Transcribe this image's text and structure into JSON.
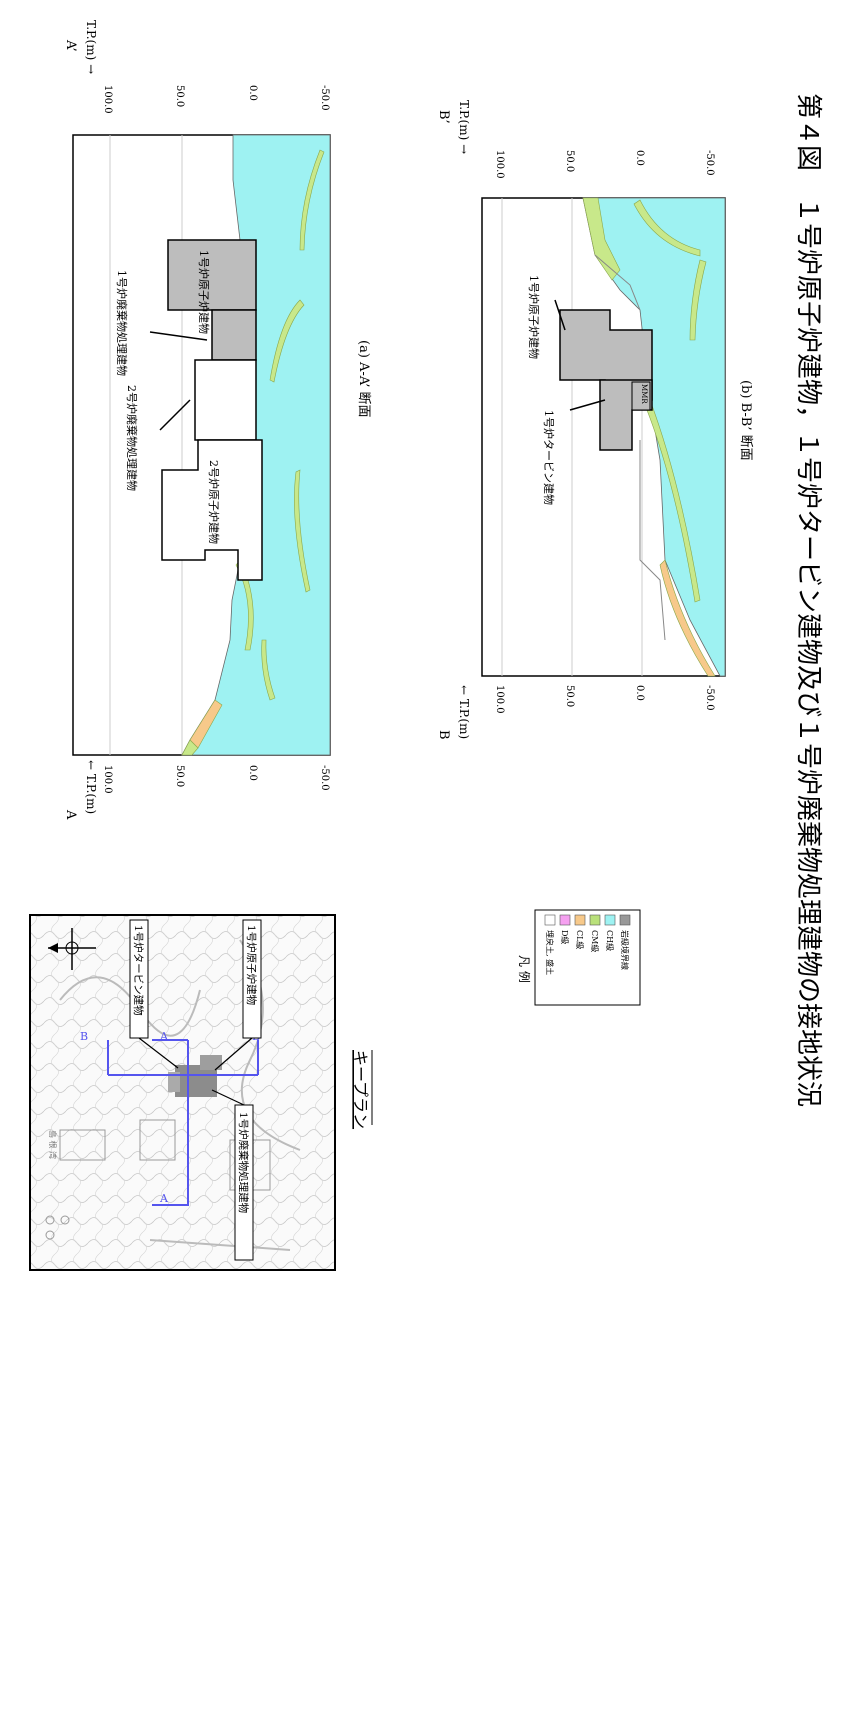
{
  "figure_caption": "第４図　１号炉原子炉建物，１号炉タービン建物及び１号炉廃棄物処理建物の接地状況",
  "key_plan": {
    "caption": "キープラン",
    "labels": {
      "turbine": "1号炉タービン建物",
      "reactor": "1号炉原子炉建物",
      "radwaste": "1号炉廃棄物処理建物",
      "sea": "島 根 湾"
    },
    "section_markers": [
      "A",
      "A",
      "B",
      "B"
    ]
  },
  "legend": {
    "title": "凡 例",
    "items": [
      {
        "label": "埋戻土, 盛土",
        "color": "#ffffff"
      },
      {
        "label": "D級",
        "color": "#f5a0f0"
      },
      {
        "label": "CL級",
        "color": "#f7c98a"
      },
      {
        "label": "CM級",
        "color": "#b9e07a"
      },
      {
        "label": "CH級",
        "color": "#9ef2f2"
      },
      {
        "label": "岩級境界線",
        "color": "#999999"
      }
    ]
  },
  "section_a": {
    "caption": "(a) A-A’ 断面",
    "left_end": "A",
    "right_end": "A’",
    "axis_title_left": "← T.P.(m)",
    "axis_title_right": "T.P.(m) →",
    "ticks": [
      "100.0",
      "50.0",
      "0.0",
      "-50.0"
    ],
    "labels": {
      "unit1_rw": "1号炉廃棄物処理建物",
      "unit1_rb": "1号炉原子炉建物",
      "unit2_rw": "2号炉廃棄物処理建物",
      "unit2_rb": "2号炉原子炉建物"
    }
  },
  "section_b": {
    "caption": "(b) B-B’ 断面",
    "left_end": "B",
    "right_end": "B’",
    "axis_title_left": "← T.P.(m)",
    "axis_title_right": "T.P.(m) →",
    "ticks": [
      "100.0",
      "50.0",
      "0.0",
      "-50.0"
    ],
    "labels": {
      "unit1_rb": "1号炉原子炉建物",
      "unit1_tb": "1号炉タービン建物",
      "mmr": "MMR"
    }
  }
}
